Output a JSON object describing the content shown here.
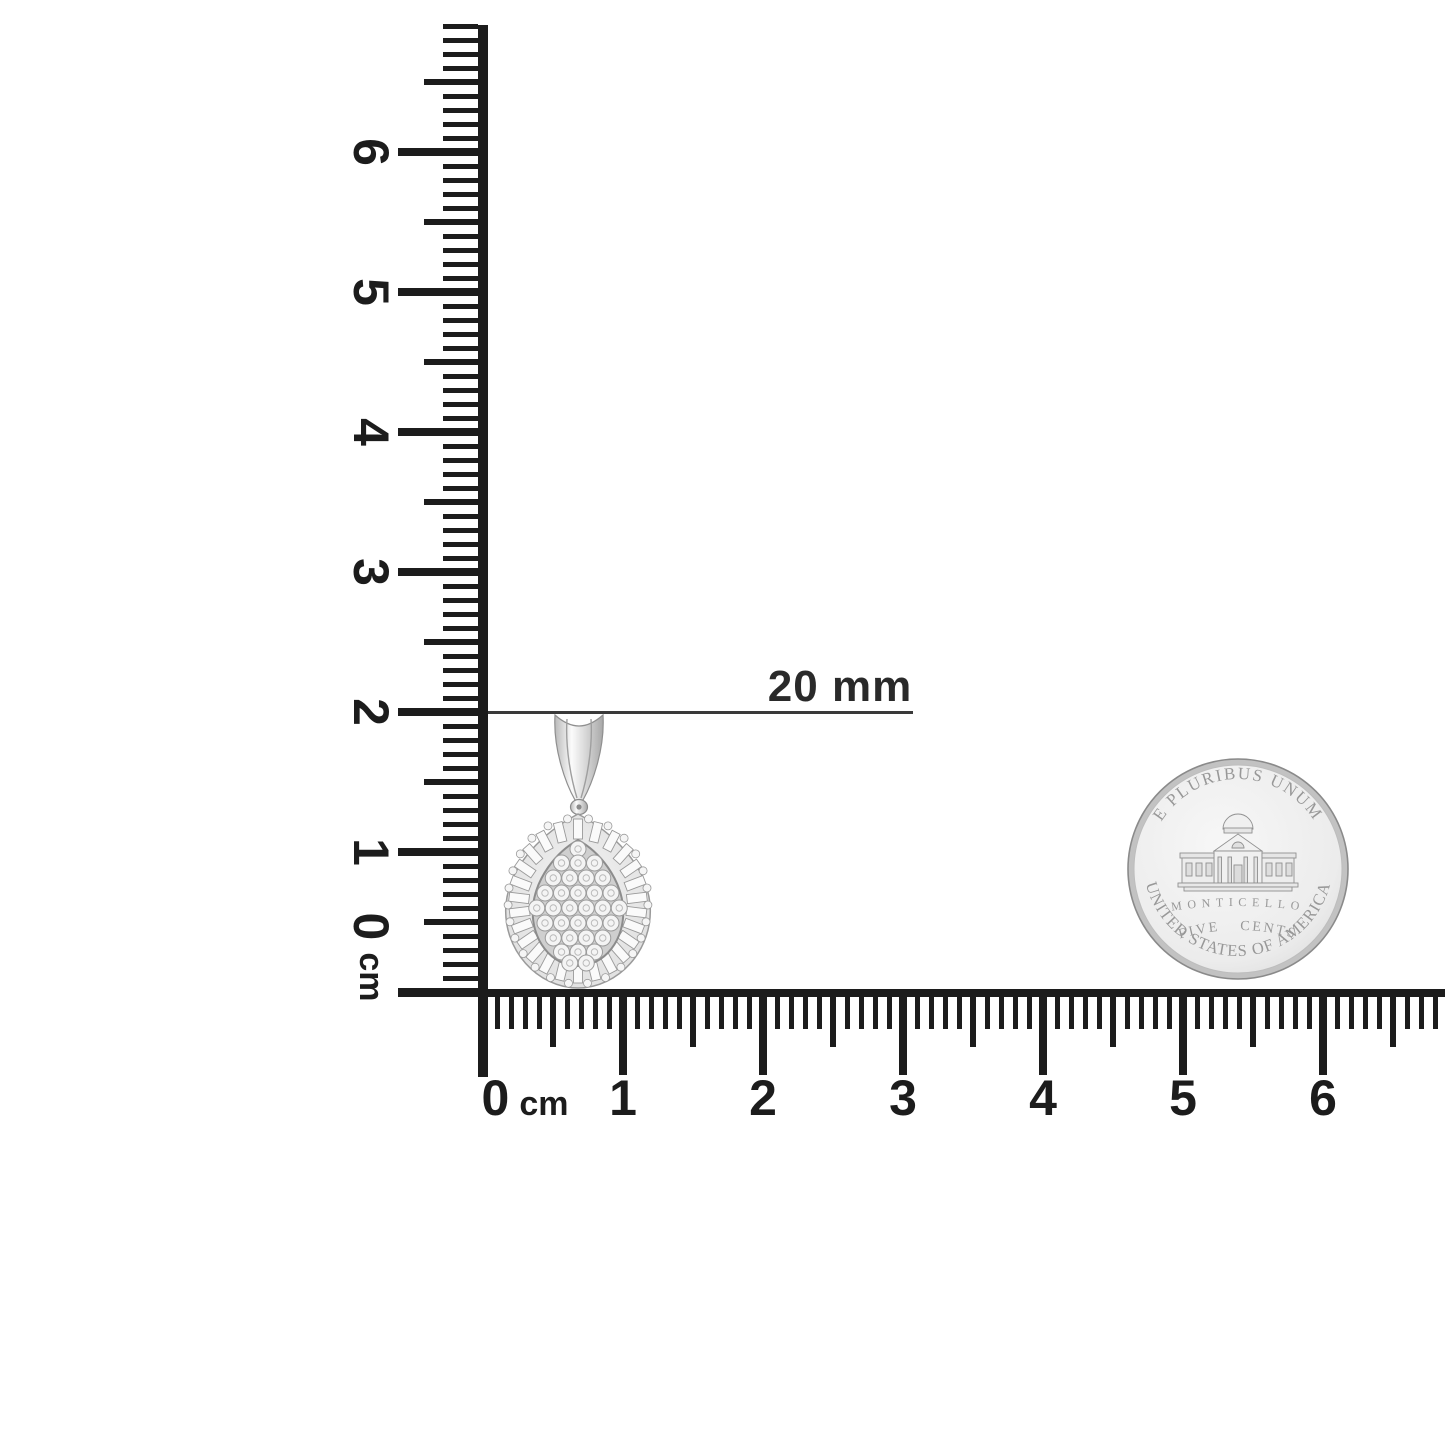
{
  "colors": {
    "background": "#ffffff",
    "ink": "#1c1c1c",
    "annotation_line": "#3a3a3a",
    "silver_light": "#f6f6f6",
    "silver_mid": "#d6d6d6",
    "silver_dark": "#8f8f8f",
    "coin_face": "#efefef",
    "coin_edge": "#c2c2c2",
    "engrave_gray": "#989898"
  },
  "measurement": {
    "label": "20 mm"
  },
  "vertical_ruler": {
    "zero_label": "0",
    "unit_label": "cm",
    "labels": [
      "1",
      "2",
      "3",
      "4",
      "5",
      "6"
    ]
  },
  "horizontal_ruler": {
    "zero_label": "0",
    "unit_label": "cm",
    "labels": [
      "1",
      "2",
      "3",
      "4",
      "5",
      "6"
    ]
  },
  "objects": {
    "pendant": "teardrop-diamond-cluster-pendant",
    "coin": "jefferson-nickel-reverse"
  },
  "coin": {
    "legend_top": "E PLURIBUS UNUM",
    "building_label": "MONTICELLO",
    "denomination": "FIVE CENTS",
    "legend_bottom": "UNITED STATES OF AMERICA"
  }
}
